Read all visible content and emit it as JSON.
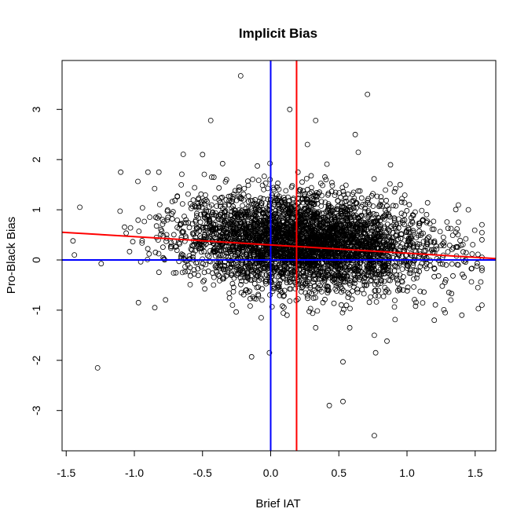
{
  "chart_data": {
    "type": "scatter",
    "title": "Implicit Bias",
    "xlabel": "Brief IAT",
    "ylabel": "Pro-Black Bias",
    "xlim": [
      -1.5,
      1.6
    ],
    "ylim": [
      -3.8,
      3.8
    ],
    "x_ticks": [
      -1.5,
      -1.0,
      -0.5,
      0.0,
      0.5,
      1.0,
      1.5
    ],
    "x_tick_labels": [
      "-1.5",
      "-1.0",
      "-0.5",
      "0.0",
      "0.5",
      "1.0",
      "1.5"
    ],
    "y_ticks": [
      -3,
      -2,
      -1,
      0,
      1,
      2,
      3
    ],
    "y_tick_labels": [
      "-3",
      "-2",
      "-1",
      "0",
      "1",
      "2",
      "3"
    ],
    "reference_lines": {
      "vertical": [
        {
          "x": 0.0,
          "color": "#0000ff"
        },
        {
          "x": 0.19,
          "color": "#ff0000"
        }
      ],
      "horizontal": [
        {
          "y": 0.0,
          "color": "#0000ff"
        }
      ],
      "regression": {
        "intercept": 0.3,
        "slope": -0.165,
        "color": "#ff0000"
      }
    },
    "point_style": {
      "shape": "open-circle",
      "color": "#000000"
    },
    "point_cloud": {
      "approx_count": 4000,
      "x_center": 0.25,
      "x_sd": 0.45,
      "y_center": 0.35,
      "y_sd": 0.45
    },
    "series": [
      {
        "values": [
          [
            -0.22,
            3.67
          ],
          [
            0.14,
            3.0
          ],
          [
            0.71,
            3.3
          ],
          [
            -0.44,
            2.78
          ],
          [
            0.33,
            2.78
          ],
          [
            0.62,
            2.5
          ],
          [
            0.27,
            2.3
          ],
          [
            -0.5,
            2.1
          ],
          [
            -1.27,
            -2.15
          ],
          [
            -0.14,
            -1.93
          ],
          [
            0.53,
            -2.03
          ],
          [
            0.43,
            -2.9
          ],
          [
            0.53,
            -2.82
          ],
          [
            0.76,
            -3.5
          ],
          [
            0.77,
            -1.85
          ],
          [
            0.76,
            -1.5
          ],
          [
            0.58,
            -1.35
          ],
          [
            0.33,
            -1.35
          ],
          [
            -0.07,
            -1.15
          ],
          [
            0.12,
            -1.1
          ],
          [
            -1.4,
            1.05
          ],
          [
            -1.45,
            0.38
          ],
          [
            -1.44,
            0.1
          ],
          [
            1.43,
            0.0
          ],
          [
            1.52,
            -0.55
          ],
          [
            1.45,
            1.0
          ],
          [
            -1.1,
            1.75
          ],
          [
            -0.9,
            1.75
          ],
          [
            -0.82,
            1.75
          ],
          [
            0.95,
            1.5
          ],
          [
            1.2,
            -1.2
          ],
          [
            1.28,
            -1.05
          ],
          [
            -0.97,
            -0.85
          ],
          [
            -0.85,
            -0.95
          ],
          [
            0.2,
            1.75
          ]
        ]
      }
    ]
  }
}
